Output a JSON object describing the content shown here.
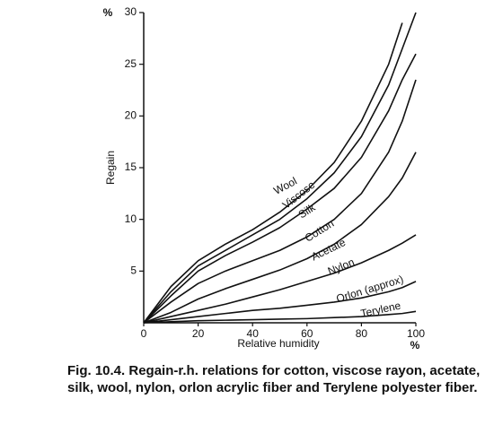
{
  "chart_data": {
    "type": "line",
    "y_label": "Regain",
    "y_unit": "%",
    "x_label": "Relative humidity",
    "x_unit": "%",
    "caption": "Fig. 10.4. Regain-r.h. relations for cotton, viscose rayon, acetate, silk, wool, nylon, orlon acrylic fiber and Terylene polyester fiber.",
    "x": [
      0,
      10,
      20,
      30,
      40,
      50,
      60,
      70,
      80,
      90,
      95,
      100
    ],
    "series": [
      {
        "name": "Wool",
        "color": "#111111",
        "values": [
          0,
          3.5,
          6,
          7.6,
          9,
          10.7,
          12.8,
          15.5,
          19.5,
          25,
          29,
          null
        ]
      },
      {
        "name": "Viscose",
        "color": "#111111",
        "values": [
          0,
          3,
          5.5,
          7,
          8.5,
          10,
          12,
          14.5,
          18,
          23,
          26.5,
          30
        ]
      },
      {
        "name": "Silk",
        "color": "#111111",
        "values": [
          0,
          2.6,
          5,
          6.5,
          7.8,
          9.2,
          11,
          13,
          16,
          20.5,
          23.5,
          26
        ]
      },
      {
        "name": "Cotton",
        "color": "#111111",
        "values": [
          0,
          2,
          3.8,
          5,
          6,
          7,
          8.3,
          10,
          12.5,
          16.5,
          19.5,
          23.5
        ]
      },
      {
        "name": "Acetate",
        "color": "#111111",
        "values": [
          0,
          1,
          2.3,
          3.3,
          4.2,
          5.1,
          6.2,
          7.6,
          9.5,
          12.2,
          14,
          16.5
        ]
      },
      {
        "name": "Nylon",
        "color": "#111111",
        "values": [
          0,
          0.6,
          1.2,
          1.8,
          2.5,
          3.2,
          4,
          4.8,
          5.8,
          7,
          7.7,
          8.5
        ]
      },
      {
        "name": "Orlon (approx)",
        "color": "#111111",
        "values": [
          0,
          0.3,
          0.6,
          0.9,
          1.2,
          1.4,
          1.7,
          2,
          2.4,
          3,
          3.4,
          4
        ]
      },
      {
        "name": "Terylene",
        "color": "#111111",
        "values": [
          0,
          0.1,
          0.2,
          0.25,
          0.3,
          0.35,
          0.4,
          0.5,
          0.6,
          0.8,
          0.9,
          1.1
        ]
      }
    ],
    "xlim": [
      0,
      100
    ],
    "xticks": [
      0,
      20,
      40,
      60,
      80,
      100
    ],
    "ylim": [
      0,
      30
    ],
    "yticks": [
      5,
      10,
      15,
      20,
      25,
      30
    ]
  }
}
